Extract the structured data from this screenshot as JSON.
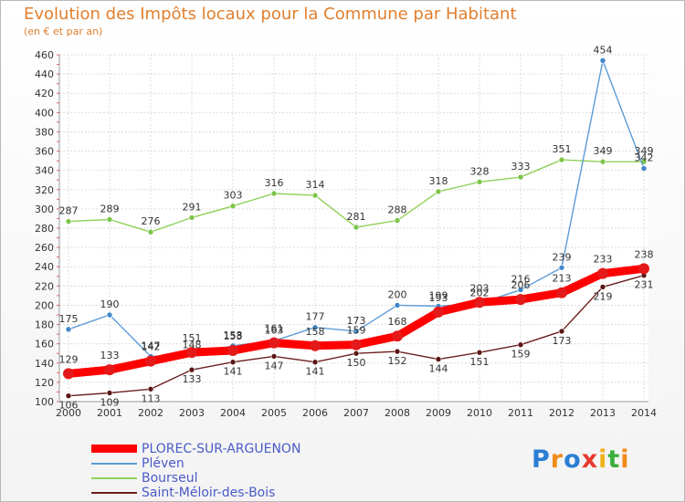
{
  "header": {
    "title": "Evolution des Impôts locaux pour la Commune par Habitant",
    "subtitle": "(en € et par an)"
  },
  "chart_data": {
    "type": "line",
    "x": [
      "2000",
      "2001",
      "2002",
      "2003",
      "2004",
      "2005",
      "2006",
      "2007",
      "2008",
      "2009",
      "2010",
      "2011",
      "2012",
      "2013",
      "2014"
    ],
    "ylim": [
      100,
      460
    ],
    "yticks": [
      100,
      120,
      140,
      160,
      180,
      200,
      220,
      240,
      260,
      280,
      300,
      320,
      340,
      360,
      380,
      400,
      420,
      440,
      460
    ],
    "grid": true,
    "legend_position": "bottom-left",
    "series": [
      {
        "name": "Saint-Méloir-des-Bois",
        "color": "#6b1f1f",
        "marker": "#5a1515",
        "width": 1.4,
        "values": [
          106,
          109,
          113,
          133,
          141,
          147,
          141,
          150,
          152,
          144,
          151,
          159,
          173,
          219,
          231
        ]
      },
      {
        "name": "Bourseul",
        "color": "#8fd15a",
        "marker": "#7cc447",
        "width": 1.4,
        "values": [
          287,
          289,
          276,
          291,
          303,
          316,
          314,
          281,
          288,
          318,
          328,
          333,
          351,
          349,
          349
        ]
      },
      {
        "name": "Pléven",
        "color": "#5b9bd5",
        "marker": "#3f87c9",
        "width": 1.4,
        "values": [
          175,
          190,
          147,
          148,
          158,
          163,
          177,
          173,
          200,
          199,
          202,
          216,
          239,
          454,
          342
        ]
      },
      {
        "name": "PLOREC-SUR-ARGUENON",
        "color": "#ff0000",
        "marker": "#e41a1a",
        "width": 9,
        "values": [
          129,
          133,
          142,
          151,
          153,
          161,
          158,
          159,
          168,
          193,
          203,
          206,
          213,
          233,
          238
        ]
      }
    ],
    "legend": [
      "PLOREC-SUR-ARGUENON",
      "Pléven",
      "Bourseul",
      "Saint-Méloir-des-Bois"
    ]
  },
  "logo": {
    "letters": [
      "P",
      "r",
      "o",
      "x",
      "i",
      "t",
      "i"
    ],
    "colors": [
      "#2a7fd4",
      "#f08c1a",
      "#2a7fd4",
      "#e83b2e",
      "#f0b21a",
      "#3cae3c",
      "#f08c1a"
    ]
  }
}
